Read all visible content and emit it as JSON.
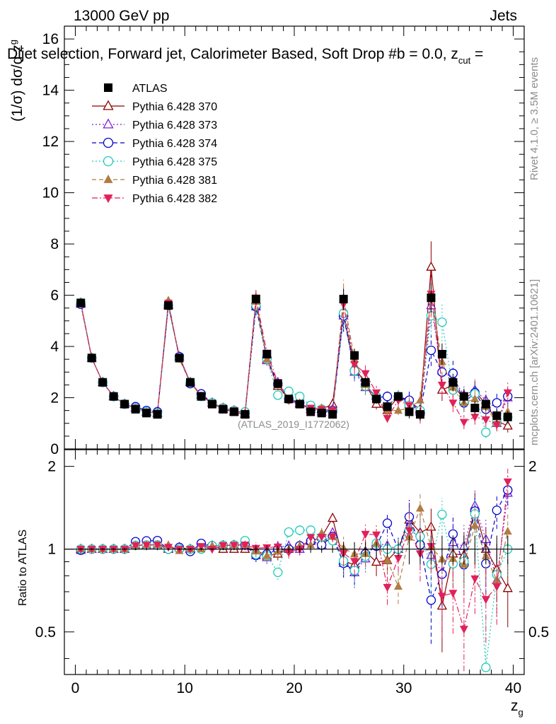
{
  "header": {
    "energy": "13000 GeV pp",
    "category": "Jets",
    "plot_title": "Dijet selection, Forward jet, Calorimeter Based, Soft Drop #b = 0.0, z",
    "title_sub": "cut",
    "title_tail": " =",
    "side_rivet": "Rivet 4.1.0, ≥ 3.5M events",
    "side_mcplots": "mcplots.cern.ch [arXiv:2401.10621]",
    "watermark": "(ATLAS_2019_I1772062)"
  },
  "chart_data": [
    {
      "type": "line",
      "panel": "main",
      "ylabel": "(1/σ) dσ/d z",
      "ylabel_sub": "g",
      "xlabel": "z",
      "xlabel_sub": "g",
      "xlim": [
        -1,
        41
      ],
      "ylim": [
        0,
        16.5
      ],
      "x_ticks": [
        0,
        10,
        20,
        30,
        40
      ],
      "y_ticks": [
        0,
        2,
        4,
        6,
        8,
        10,
        12,
        14,
        16
      ],
      "x": [
        0.5,
        1.5,
        2.5,
        3.5,
        4.5,
        5.5,
        6.5,
        7.5,
        8.5,
        9.5,
        10.5,
        11.5,
        12.5,
        13.5,
        14.5,
        15.5,
        16.5,
        17.5,
        18.5,
        19.5,
        20.5,
        21.5,
        22.5,
        23.5,
        24.5,
        25.5,
        26.5,
        27.5,
        28.5,
        29.5,
        30.5,
        31.5,
        32.5,
        33.5,
        34.5,
        35.5,
        36.5,
        37.5,
        38.5,
        39.5
      ],
      "series": [
        {
          "name": "ATLAS",
          "marker": "square-filled",
          "color": "#000000",
          "values": [
            5.7,
            3.55,
            2.6,
            2.05,
            1.75,
            1.55,
            1.4,
            1.35,
            5.6,
            3.55,
            2.6,
            2.05,
            1.75,
            1.55,
            1.45,
            1.35,
            5.85,
            3.7,
            2.55,
            1.95,
            1.75,
            1.45,
            1.4,
            1.35,
            5.85,
            3.65,
            2.6,
            1.95,
            1.65,
            2.05,
            1.45,
            1.35,
            5.9,
            3.7,
            2.6,
            2.05,
            1.6,
            1.75,
            1.3,
            1.25
          ]
        },
        {
          "name": "Pythia 6.428 370",
          "marker": "triangle-open",
          "color": "#8b0000",
          "linestyle": "solid",
          "values": [
            5.7,
            3.55,
            2.6,
            2.05,
            1.75,
            1.6,
            1.45,
            1.4,
            5.6,
            3.6,
            2.6,
            2.1,
            1.8,
            1.55,
            1.45,
            1.35,
            5.8,
            3.5,
            2.45,
            1.95,
            1.8,
            1.55,
            1.55,
            1.75,
            5.3,
            3.2,
            2.55,
            1.75,
            1.5,
            2.05,
            1.85,
            1.55,
            7.1,
            2.3,
            2.5,
            1.95,
            2.25,
            1.75,
            1.1,
            0.9
          ]
        },
        {
          "name": "Pythia 6.428 373",
          "marker": "triangle-open",
          "color": "#7b1fd2",
          "linestyle": "dotted",
          "values": [
            5.65,
            3.55,
            2.6,
            2.05,
            1.75,
            1.6,
            1.45,
            1.4,
            5.65,
            3.6,
            2.6,
            2.1,
            1.8,
            1.6,
            1.5,
            1.4,
            5.55,
            3.45,
            2.6,
            2.0,
            1.75,
            1.55,
            1.45,
            1.55,
            5.2,
            3.0,
            2.4,
            2.05,
            1.7,
            2.05,
            1.75,
            1.45,
            5.6,
            3.05,
            2.75,
            2.1,
            2.3,
            1.9,
            1.0,
            2.0
          ]
        },
        {
          "name": "Pythia 6.428 374",
          "marker": "circle-open",
          "color": "#0000cc",
          "linestyle": "dashed",
          "values": [
            5.65,
            3.55,
            2.6,
            2.05,
            1.75,
            1.65,
            1.5,
            1.45,
            5.6,
            3.6,
            2.55,
            2.15,
            1.8,
            1.6,
            1.5,
            1.4,
            5.55,
            3.55,
            2.55,
            1.95,
            1.8,
            1.55,
            1.45,
            1.5,
            5.2,
            3.05,
            2.5,
            2.0,
            2.05,
            2.05,
            1.9,
            1.4,
            3.85,
            3.0,
            2.95,
            1.8,
            2.2,
            1.55,
            1.8,
            2.05
          ]
        },
        {
          "name": "Pythia 6.428 375",
          "marker": "circle-open",
          "color": "#20c9b8",
          "linestyle": "dotted",
          "values": [
            5.7,
            3.55,
            2.6,
            2.05,
            1.75,
            1.6,
            1.45,
            1.4,
            5.6,
            3.55,
            2.6,
            2.05,
            1.8,
            1.6,
            1.5,
            1.45,
            5.6,
            3.5,
            2.1,
            2.25,
            2.05,
            1.7,
            1.55,
            1.45,
            5.3,
            3.05,
            2.45,
            2.05,
            1.65,
            2.05,
            1.7,
            1.5,
            5.2,
            4.95,
            2.3,
            1.85,
            2.15,
            0.65,
            1.05,
            1.25
          ]
        },
        {
          "name": "Pythia 6.428 381",
          "marker": "triangle-filled",
          "color": "#b07c44",
          "linestyle": "dashed",
          "values": [
            5.7,
            3.55,
            2.6,
            2.05,
            1.75,
            1.6,
            1.45,
            1.4,
            5.8,
            3.5,
            2.6,
            2.05,
            1.8,
            1.6,
            1.5,
            1.4,
            5.75,
            3.5,
            2.5,
            1.95,
            1.8,
            1.5,
            1.6,
            1.5,
            5.9,
            3.5,
            2.5,
            2.05,
            1.5,
            1.5,
            1.6,
            1.9,
            6.0,
            3.4,
            2.4,
            1.8,
            1.95,
            1.65,
            1.0,
            1.45
          ]
        },
        {
          "name": "Pythia 6.428 382",
          "marker": "triangle-down-filled",
          "color": "#e0215a",
          "linestyle": "dashdot",
          "values": [
            5.7,
            3.55,
            2.6,
            2.05,
            1.75,
            1.6,
            1.45,
            1.4,
            5.7,
            3.55,
            2.6,
            2.1,
            1.75,
            1.6,
            1.5,
            1.4,
            5.9,
            3.75,
            2.6,
            1.9,
            1.75,
            1.6,
            1.55,
            1.5,
            5.65,
            3.3,
            2.95,
            2.2,
            1.2,
            1.9,
            1.7,
            1.3,
            6.05,
            2.5,
            1.8,
            1.05,
            1.25,
            1.15,
            0.95,
            2.2
          ]
        }
      ]
    },
    {
      "type": "line",
      "panel": "ratio",
      "ylabel": "Ratio to ATLAS",
      "ylim": [
        0.35,
        2.3
      ],
      "y_ticks": [
        0.5,
        1,
        2
      ],
      "reference": 1
    }
  ]
}
